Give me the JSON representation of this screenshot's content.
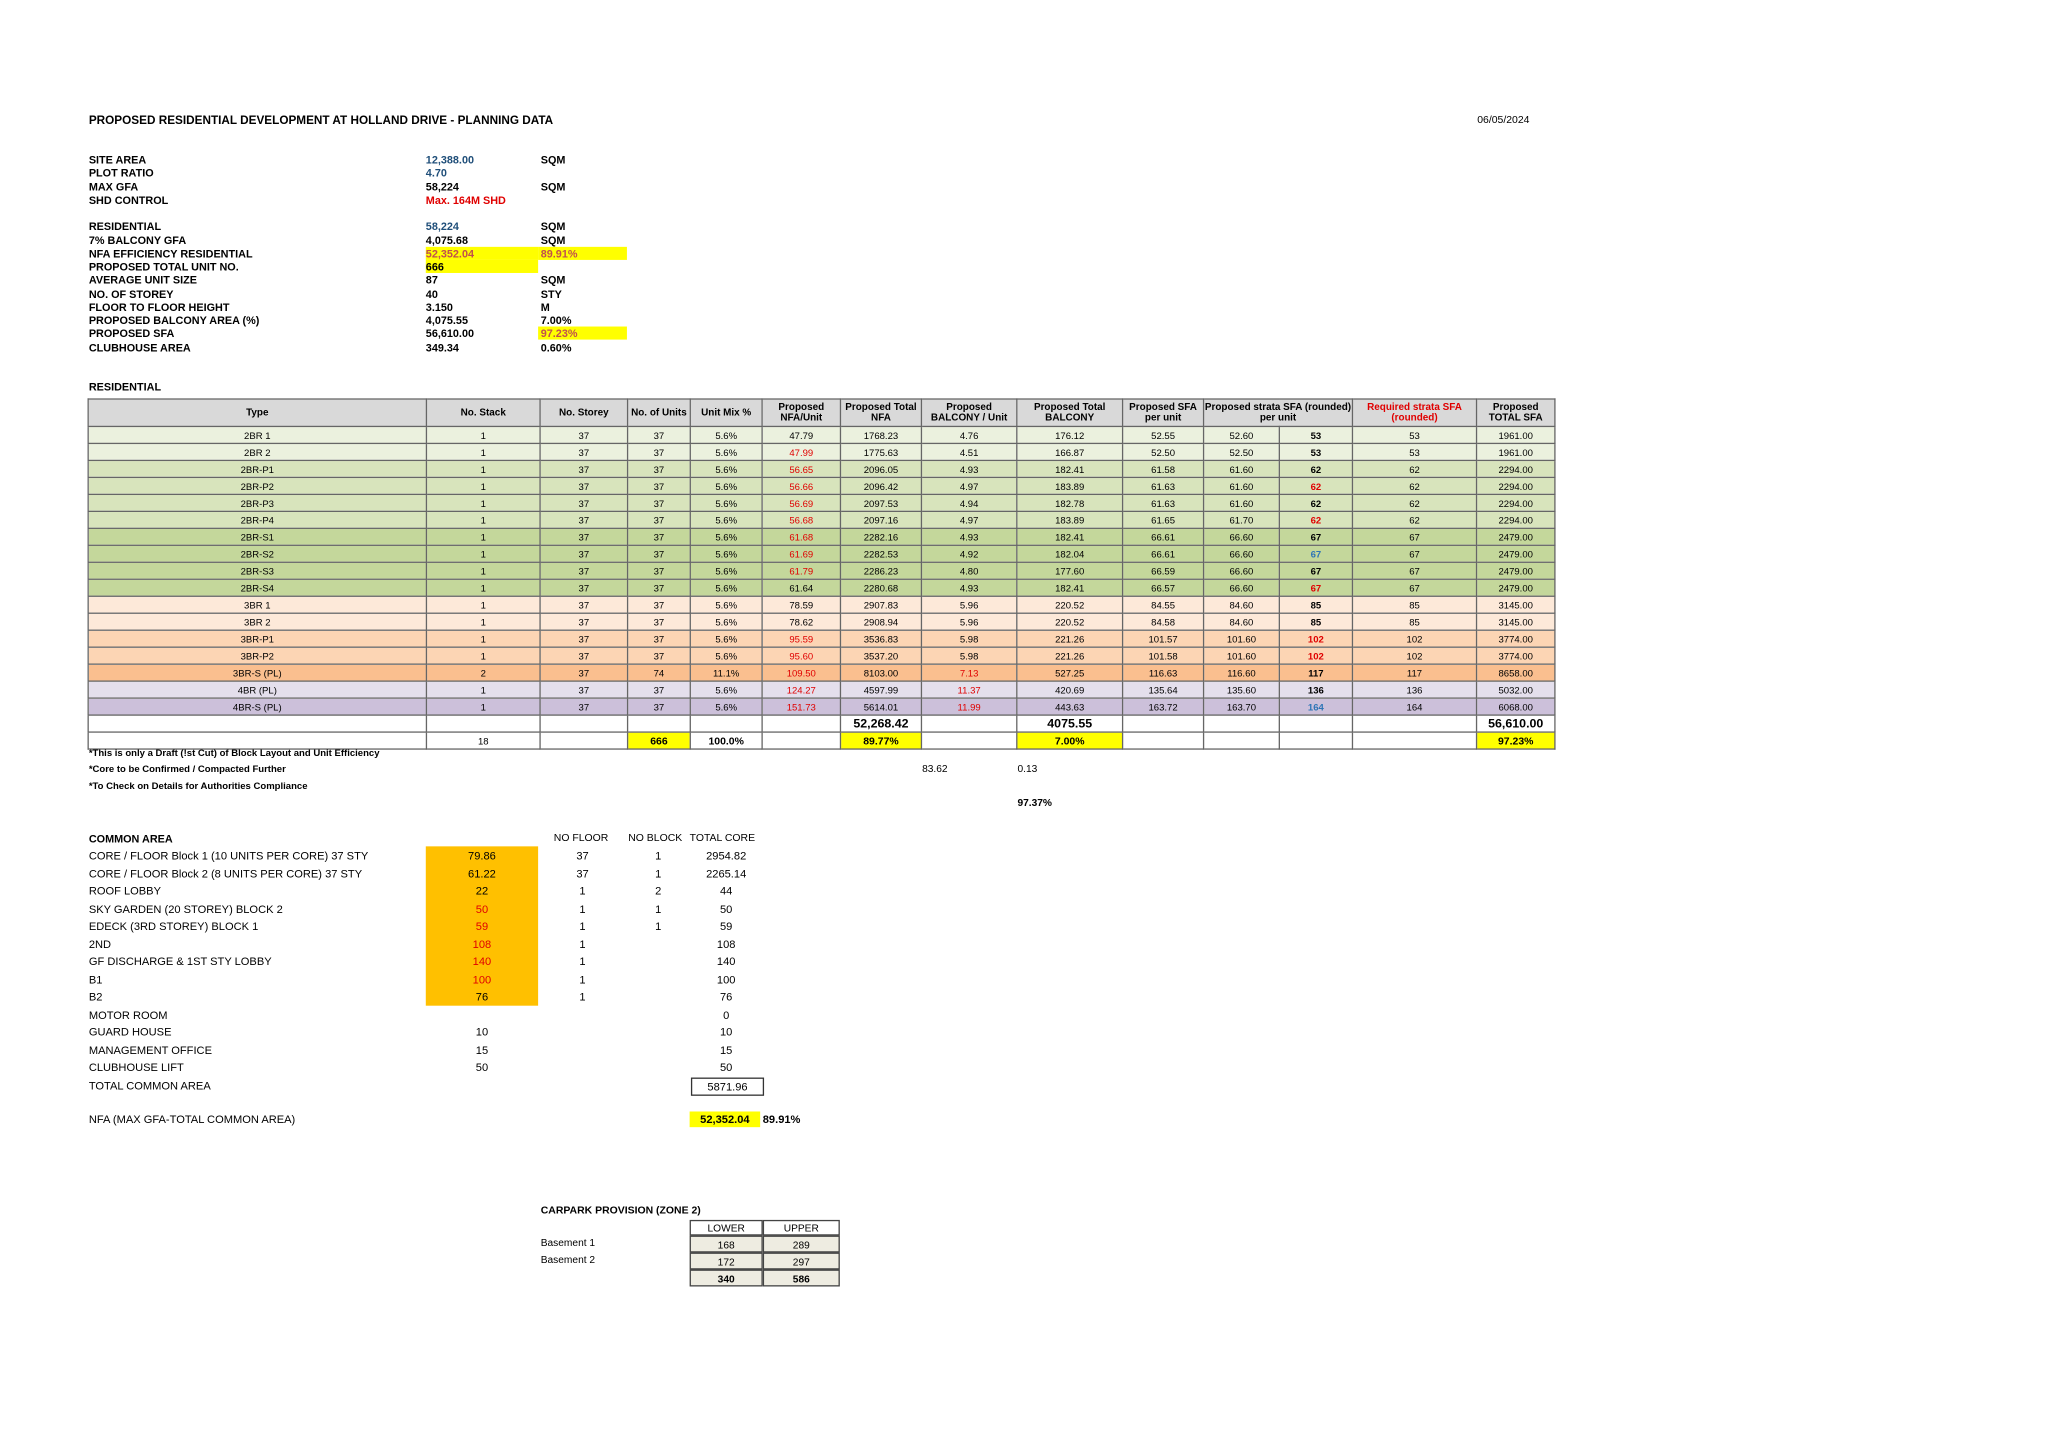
{
  "header": {
    "title": "PROPOSED RESIDENTIAL DEVELOPMENT AT HOLLAND DRIVE - PLANNING DATA",
    "date": "06/05/2024"
  },
  "summary": [
    {
      "label": "SITE AREA",
      "value": "12,388.00",
      "extra": "SQM"
    },
    {
      "label": "PLOT RATIO",
      "value": "4.70"
    },
    {
      "label": "MAX GFA",
      "value": "58,224",
      "extra": "SQM"
    },
    {
      "label": "SHD CONTROL",
      "value": "Max. 164M SHD"
    },
    {
      "label": "RESIDENTIAL",
      "value": "58,224",
      "extra": "SQM"
    },
    {
      "label": "7% BALCONY GFA",
      "value": "4,075.68",
      "extra": "SQM"
    },
    {
      "label": "NFA EFFICIENCY RESIDENTIAL",
      "value": "52,352.04",
      "extra": "89.91%"
    },
    {
      "label": "PROPOSED TOTAL UNIT NO.",
      "value": "666"
    },
    {
      "label": "AVERAGE UNIT SIZE",
      "value": "87",
      "extra": "SQM"
    },
    {
      "label": "NO. OF STOREY",
      "value": "40",
      "extra": "STY"
    },
    {
      "label": "FLOOR TO FLOOR HEIGHT",
      "value": "3.150",
      "extra": "M"
    },
    {
      "label": "PROPOSED BALCONY AREA (%)",
      "value": "4,075.55",
      "extra": "7.00%"
    },
    {
      "label": "PROPOSED SFA",
      "value": "56,610.00",
      "extra": "97.23%"
    },
    {
      "label": "CLUBHOUSE AREA",
      "value": "349.34",
      "extra": "0.60%"
    }
  ],
  "residential": {
    "title": "RESIDENTIAL",
    "headers": [
      "Type",
      "No. Stack",
      "No. Storey",
      "No. of Units",
      "Unit Mix %",
      "Proposed NFA/Unit",
      "Proposed Total NFA",
      "Proposed BALCONY / Unit",
      "Proposed Total BALCONY",
      "Proposed SFA per unit",
      "Proposed strata SFA (rounded) per unit",
      "Required strata SFA (rounded)",
      "Proposed TOTAL SFA"
    ],
    "rows": [
      {
        "type": "2BR 1",
        "color": "#ebf1de",
        "cells": [
          "1",
          "37",
          "37",
          "5.6%",
          "47.79",
          "1768.23",
          "4.76",
          "176.12",
          "52.55",
          "52.60",
          "53",
          "53",
          "1961.00"
        ]
      },
      {
        "type": "2BR 2",
        "color": "#ebf1de",
        "cells": [
          "1",
          "37",
          "37",
          "5.6%",
          "47.99",
          "1775.63",
          "4.51",
          "166.87",
          "52.50",
          "52.50",
          "53",
          "53",
          "1961.00"
        ]
      },
      {
        "type": "2BR-P1",
        "color": "#d8e4bc",
        "cells": [
          "1",
          "37",
          "37",
          "5.6%",
          "56.65",
          "2096.05",
          "4.93",
          "182.41",
          "61.58",
          "61.60",
          "62",
          "62",
          "2294.00"
        ]
      },
      {
        "type": "2BR-P2",
        "color": "#d8e4bc",
        "cells": [
          "1",
          "37",
          "37",
          "5.6%",
          "56.66",
          "2096.42",
          "4.97",
          "183.89",
          "61.63",
          "61.60",
          "62",
          "62",
          "2294.00"
        ]
      },
      {
        "type": "2BR-P3",
        "color": "#d8e4bc",
        "cells": [
          "1",
          "37",
          "37",
          "5.6%",
          "56.69",
          "2097.53",
          "4.94",
          "182.78",
          "61.63",
          "61.60",
          "62",
          "62",
          "2294.00"
        ]
      },
      {
        "type": "2BR-P4",
        "color": "#d8e4bc",
        "cells": [
          "1",
          "37",
          "37",
          "5.6%",
          "56.68",
          "2097.16",
          "4.97",
          "183.89",
          "61.65",
          "61.70",
          "62",
          "62",
          "2294.00"
        ]
      },
      {
        "type": "2BR-S1",
        "color": "#c4d79b",
        "cells": [
          "1",
          "37",
          "37",
          "5.6%",
          "61.68",
          "2282.16",
          "4.93",
          "182.41",
          "66.61",
          "66.60",
          "67",
          "67",
          "2479.00"
        ]
      },
      {
        "type": "2BR-S2",
        "color": "#c4d79b",
        "cells": [
          "1",
          "37",
          "37",
          "5.6%",
          "61.69",
          "2282.53",
          "4.92",
          "182.04",
          "66.61",
          "66.60",
          "67",
          "67",
          "2479.00"
        ]
      },
      {
        "type": "2BR-S3",
        "color": "#c4d79b",
        "cells": [
          "1",
          "37",
          "37",
          "5.6%",
          "61.79",
          "2286.23",
          "4.80",
          "177.60",
          "66.59",
          "66.60",
          "67",
          "67",
          "2479.00"
        ]
      },
      {
        "type": "2BR-S4",
        "color": "#c4d79b",
        "cells": [
          "1",
          "37",
          "37",
          "5.6%",
          "61.64",
          "2280.68",
          "4.93",
          "182.41",
          "66.57",
          "66.60",
          "67",
          "67",
          "2479.00"
        ]
      },
      {
        "type": "3BR 1",
        "color": "#fde9d9",
        "cells": [
          "1",
          "37",
          "37",
          "5.6%",
          "78.59",
          "2907.83",
          "5.96",
          "220.52",
          "84.55",
          "84.60",
          "85",
          "85",
          "3145.00"
        ]
      },
      {
        "type": "3BR 2",
        "color": "#fde9d9",
        "cells": [
          "1",
          "37",
          "37",
          "5.6%",
          "78.62",
          "2908.94",
          "5.96",
          "220.52",
          "84.58",
          "84.60",
          "85",
          "85",
          "3145.00"
        ]
      },
      {
        "type": "3BR-P1",
        "color": "#fcd5b4",
        "cells": [
          "1",
          "37",
          "37",
          "5.6%",
          "95.59",
          "3536.83",
          "5.98",
          "221.26",
          "101.57",
          "101.60",
          "102",
          "102",
          "3774.00"
        ]
      },
      {
        "type": "3BR-P2",
        "color": "#fcd5b4",
        "cells": [
          "1",
          "37",
          "37",
          "5.6%",
          "95.60",
          "3537.20",
          "5.98",
          "221.26",
          "101.58",
          "101.60",
          "102",
          "102",
          "3774.00"
        ]
      },
      {
        "type": "3BR-S (PL)",
        "color": "#fabf8f",
        "cells": [
          "2",
          "37",
          "74",
          "11.1%",
          "109.50",
          "8103.00",
          "7.13",
          "527.25",
          "116.63",
          "116.60",
          "117",
          "117",
          "8658.00"
        ]
      },
      {
        "type": "4BR (PL)",
        "color": "#e4dfec",
        "cells": [
          "1",
          "37",
          "37",
          "5.6%",
          "124.27",
          "4597.99",
          "11.37",
          "420.69",
          "135.64",
          "135.60",
          "136",
          "136",
          "5032.00"
        ]
      },
      {
        "type": "4BR-S (PL)",
        "color": "#ccc0da",
        "cells": [
          "1",
          "37",
          "37",
          "5.6%",
          "151.73",
          "5614.01",
          "11.99",
          "443.63",
          "163.72",
          "163.70",
          "164",
          "164",
          "6068.00"
        ]
      }
    ],
    "totals": [
      [
        null,
        null,
        null,
        null,
        null,
        null,
        "52,268.42",
        null,
        "4075.55",
        null,
        null,
        null,
        null,
        "56,610.00"
      ],
      [
        null,
        "18",
        null,
        "666",
        "100.0%",
        null,
        "89.77%",
        null,
        "7.00%",
        null,
        null,
        null,
        null,
        "97.23%"
      ]
    ]
  },
  "notes": [
    "*This is only a Draft (!st Cut) of Block Layout and Unit Efficiency",
    "*Core to be Confirmed  / Compacted Further",
    "*To Check on Details for Authorities Compliance"
  ],
  "loose": {
    "a": "83.62",
    "b": "0.13",
    "c": "97.37%"
  },
  "common_area": {
    "title": "COMMON AREA",
    "headers": [
      "NO FLOOR",
      "NO BLOCK",
      "TOTAL CORE"
    ],
    "rows": [
      [
        "CORE / FLOOR Block 1 (10 UNITS PER CORE) 37 STY",
        "79.86",
        "37",
        "1",
        "2954.82"
      ],
      [
        "CORE / FLOOR Block 2 (8 UNITS PER CORE) 37 STY",
        "61.22",
        "37",
        "1",
        "2265.14"
      ],
      [
        "ROOF LOBBY",
        "22",
        "1",
        "2",
        "44"
      ],
      [
        "SKY GARDEN (20 STOREY) BLOCK 2",
        "50",
        "1",
        "1",
        "50"
      ],
      [
        "EDECK (3RD STOREY) BLOCK 1",
        "59",
        "1",
        "1",
        "59"
      ],
      [
        "2ND",
        "108",
        "1",
        null,
        "108"
      ],
      [
        "GF DISCHARGE & 1ST STY LOBBY",
        "140",
        "1",
        null,
        "140"
      ],
      [
        "B1",
        "100",
        "1",
        null,
        "100"
      ],
      [
        "B2",
        "76",
        "1",
        null,
        "76"
      ],
      [
        "MOTOR ROOM",
        null,
        null,
        null,
        "0"
      ],
      [
        "GUARD HOUSE",
        "10",
        null,
        null,
        "10"
      ],
      [
        "MANAGEMENT OFFICE",
        "15",
        null,
        null,
        "15"
      ],
      [
        "CLUBHOUSE LIFT",
        "50",
        null,
        null,
        "50"
      ],
      [
        "TOTAL COMMON AREA",
        null,
        null,
        null,
        "5871.96"
      ]
    ],
    "nfa": {
      "label": "NFA (MAX GFA-TOTAL COMMON AREA)",
      "value": "52,352.04",
      "percent": "89.91%"
    }
  },
  "carpark": {
    "title": "CARPARK PROVISION (ZONE 2)",
    "headers": [
      "LOWER",
      "UPPER"
    ],
    "rows": [
      {
        "label": "Basement 1",
        "values": [
          "168",
          "289"
        ]
      },
      {
        "label": "Basement 2",
        "values": [
          "172",
          "297"
        ]
      }
    ],
    "totals": [
      "340",
      "586"
    ]
  }
}
